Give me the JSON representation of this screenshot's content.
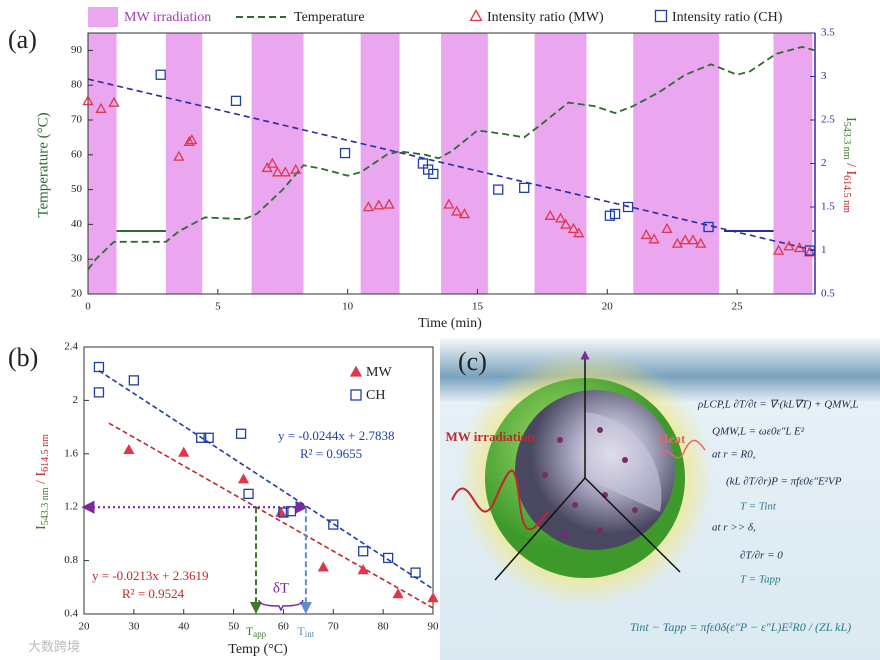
{
  "chart_data": [
    {
      "type": "combo",
      "panel_label": "(a)",
      "xlabel": "Time (min)",
      "ylabel": "Temperature (°C)",
      "y2label": [
        "I",
        "543.3 nm",
        " / I",
        "614.5 nm"
      ],
      "xlim": [
        0,
        28
      ],
      "xticks": [
        0,
        5,
        10,
        15,
        20,
        25
      ],
      "ylim": [
        20,
        95
      ],
      "yticks": [
        20,
        30,
        40,
        50,
        60,
        70,
        80,
        90
      ],
      "y2lim": [
        0.5,
        3.5
      ],
      "y2ticks": [
        0.5,
        1,
        1.5,
        2,
        2.5,
        3,
        3.5
      ],
      "shading": {
        "name": "MW irradiation",
        "color": "#eaa6ef",
        "intervals": [
          [
            0,
            1.1
          ],
          [
            3,
            4.4
          ],
          [
            6.3,
            8.3
          ],
          [
            10.5,
            12
          ],
          [
            13.6,
            15.4
          ],
          [
            17.2,
            19.2
          ],
          [
            21,
            24.3
          ],
          [
            26.4,
            27.9
          ]
        ]
      },
      "series": [
        {
          "name": "Temperature",
          "type": "line",
          "color": "#2e6b2e",
          "x": [
            0,
            0.3,
            1,
            2,
            3,
            3.5,
            4.5,
            6,
            6.5,
            7.5,
            8.3,
            9,
            10,
            10.5,
            11.5,
            12,
            13,
            13.5,
            14,
            15,
            16,
            16.8,
            17.5,
            18.5,
            19.5,
            20.3,
            21,
            22,
            23,
            24,
            25,
            25.5,
            26.5,
            27.5,
            28
          ],
          "values": [
            27,
            30,
            35,
            35,
            35,
            38,
            42,
            41.5,
            43,
            50,
            57,
            56,
            54,
            55,
            60,
            61,
            60,
            59,
            61,
            67,
            66,
            65,
            69,
            75,
            74,
            72,
            74,
            78,
            83,
            86,
            83,
            84,
            89,
            91,
            90
          ]
        },
        {
          "name": "Intensity ratio (MW)",
          "type": "scatter",
          "marker": "triangle",
          "color": "#e0364a",
          "axis": "y2",
          "x": [
            0,
            0.5,
            1,
            3.5,
            3.9,
            4,
            6.9,
            7.1,
            7.3,
            7.6,
            8,
            10.8,
            11.2,
            11.6,
            13.9,
            14.2,
            14.5,
            17.8,
            18.2,
            18.4,
            18.7,
            18.9,
            21.5,
            21.8,
            22.3,
            22.7,
            23,
            23.3,
            23.6,
            26.6,
            27,
            27.4,
            27.8
          ],
          "values": [
            2.72,
            2.63,
            2.7,
            2.08,
            2.25,
            2.27,
            1.95,
            2.0,
            1.9,
            1.9,
            1.93,
            1.5,
            1.52,
            1.53,
            1.53,
            1.45,
            1.42,
            1.4,
            1.37,
            1.3,
            1.25,
            1.2,
            1.18,
            1.13,
            1.25,
            1.08,
            1.12,
            1.12,
            1.08,
            1.0,
            1.05,
            1.03,
            0.98
          ]
        },
        {
          "name": "Intensity ratio (CH)",
          "type": "scatter",
          "marker": "square",
          "color": "#1f3fa6",
          "axis": "y2",
          "x": [
            2.8,
            5.7,
            9.9,
            12.9,
            13.1,
            13.3,
            15.8,
            16.8,
            20.1,
            20.3,
            20.8,
            23.9,
            27.8
          ],
          "values": [
            3.02,
            2.72,
            2.12,
            2.0,
            1.93,
            1.88,
            1.7,
            1.72,
            1.4,
            1.42,
            1.5,
            1.27,
            1.0
          ]
        }
      ],
      "fit_line": {
        "color": "#2a2aa8",
        "axis": "y2",
        "x": [
          0,
          28
        ],
        "values": [
          2.97,
          1.0
        ]
      }
    },
    {
      "type": "scatter",
      "panel_label": "(b)",
      "xlabel": "Temp (°C)",
      "ylabel": [
        "I",
        "543.3 nm",
        " / I",
        "614.5 nm"
      ],
      "xlim": [
        20,
        90
      ],
      "xticks": [
        20,
        30,
        40,
        50,
        60,
        70,
        80,
        90
      ],
      "ylim": [
        0.4,
        2.4
      ],
      "yticks": [
        0.4,
        0.8,
        1.2,
        1.6,
        2,
        2.4
      ],
      "series": [
        {
          "name": "MW",
          "marker": "triangle",
          "color": "#e0364a",
          "x": [
            29,
            40,
            52,
            59.5,
            68,
            76,
            83,
            90
          ],
          "values": [
            1.63,
            1.61,
            1.41,
            1.16,
            0.75,
            0.73,
            0.55,
            0.52
          ]
        },
        {
          "name": "CH",
          "marker": "square",
          "color": "#1f3fa6",
          "x": [
            23,
            23,
            30,
            43.5,
            45,
            51.5,
            53,
            60,
            61.5,
            70,
            76,
            81,
            86.5
          ],
          "values": [
            2.25,
            2.06,
            2.15,
            1.72,
            1.72,
            1.75,
            1.3,
            1.16,
            1.17,
            1.07,
            0.87,
            0.82,
            0.71
          ]
        }
      ],
      "fits": [
        {
          "color": "#c0282d",
          "x": [
            25,
            90
          ],
          "values": [
            1.8294,
            0.4449
          ],
          "equation": "y = -0.0213x + 2.3619",
          "r2": "R² = 0.9524"
        },
        {
          "color": "#1f3fa6",
          "x": [
            23,
            90
          ],
          "values": [
            2.2226,
            0.5878
          ],
          "equation": "y = -0.0244x + 2.7838",
          "r2": "R² = 0.9655"
        }
      ],
      "ratio": 1.2,
      "t_app": 54.5,
      "t_int": 64.5,
      "t_app_label": [
        "T",
        "app"
      ],
      "t_int_label": [
        "T",
        "int"
      ],
      "delta_label": "δT"
    }
  ],
  "diagram": {
    "panel_label": "(c)",
    "mw_label": "MW irradiation",
    "heat_label": "Heat",
    "equations": [
      "ρLCP,L ∂T/∂t = ∇·(kL∇T) + QMW,L",
      "QMW,L = ωε0ε″L E²",
      "at r = R0,",
      "(kL ∂T/∂r)P = πfε0ε″E²VP",
      "T = Tint",
      "at r >> δ,",
      "∂T/∂r = 0",
      "T = Tapp"
    ],
    "final_equation": "Tint − Tapp = πfε0δ(ε″P − ε″L)E²R0 / (ZL kL)"
  },
  "watermark": "大数跨境"
}
